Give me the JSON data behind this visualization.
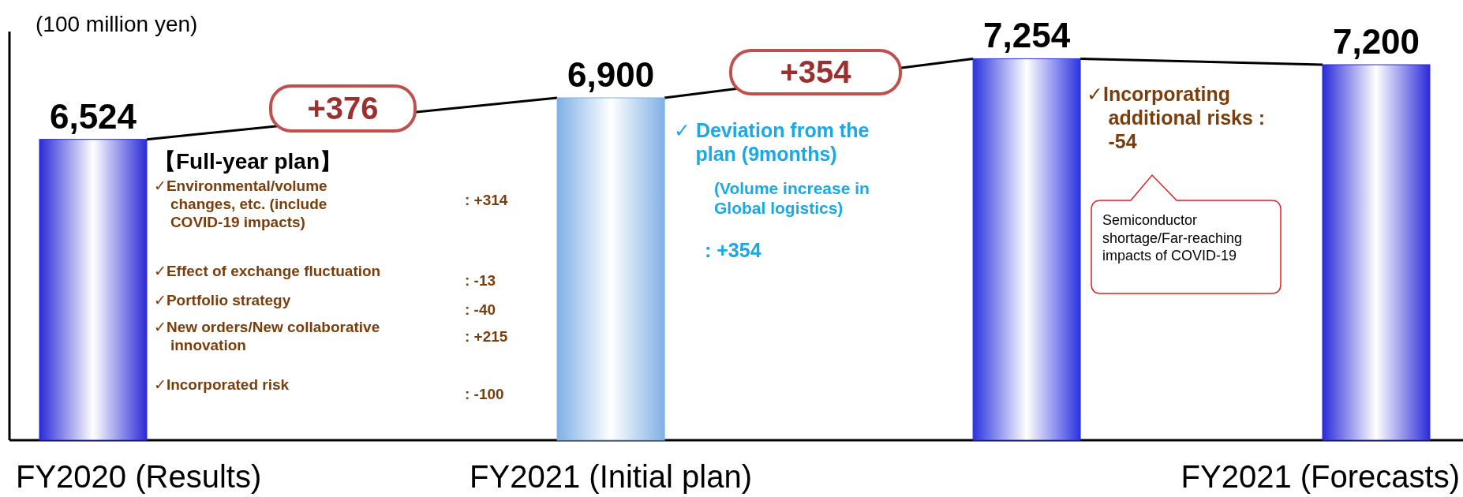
{
  "chart_data": {
    "type": "bar",
    "ylabel": "(100 million yen)",
    "categories": [
      "FY2020 (Results)",
      "FY2021 (Initial plan)",
      null,
      "FY2021 (Forecasts)"
    ],
    "ylim": [
      3800,
      7500
    ],
    "tick_labels": "x",
    "data_labels": true,
    "series": [
      {
        "colors": [
          "#2b2bd9",
          "#7fb0e4",
          "#2b33e0",
          "#2b2bd9"
        ],
        "values": [
          6524,
          6900,
          7254,
          7200
        ],
        "value_labels": [
          "6,524",
          "6,900",
          "7,254",
          "7,200"
        ]
      }
    ],
    "annotations": [
      "+376",
      "+354",
      "【Full-year plan】",
      "✓Environmental/volume changes, etc. (include COVID-19 impacts)",
      ": +314",
      "✓Effect of exchange fluctuation",
      ":   -13",
      "✓Portfolio strategy",
      ":   -40",
      "✓New orders/New collaborative innovation",
      ": +215",
      "✓Incorporated risk",
      ":  -100",
      "✓ Deviation from the plan (9months)",
      "(Volume increase in Global logistics)",
      ": +354",
      "✓Incorporating additional risks : -54",
      "Semiconductor shortage/Far-reaching impacts of COVID-19"
    ]
  }
}
